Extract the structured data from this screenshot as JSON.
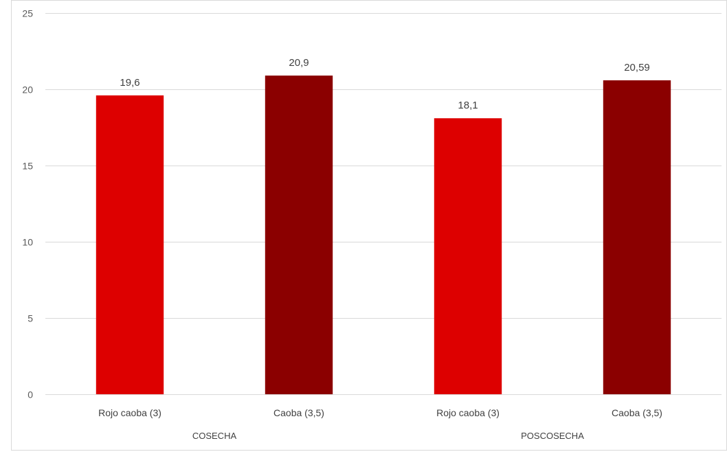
{
  "chart_data": {
    "type": "bar",
    "title": "",
    "xlabel": "",
    "ylabel": "",
    "ylim": [
      0,
      25
    ],
    "yticks": [
      "0",
      "5",
      "10",
      "15",
      "20",
      "25"
    ],
    "grid": true,
    "legend": "none",
    "groups": [
      {
        "label": "COSECHA",
        "bars": [
          {
            "category": "Rojo caoba (3)",
            "value": 19.6,
            "label": "19,6",
            "color": "#dd0000"
          },
          {
            "category": "Caoba (3,5)",
            "value": 20.9,
            "label": "20,9",
            "color": "#8b0000"
          }
        ]
      },
      {
        "label": "POSCOSECHA",
        "bars": [
          {
            "category": "Rojo caoba (3)",
            "value": 18.1,
            "label": "18,1",
            "color": "#dd0000"
          },
          {
            "category": "Caoba (3,5)",
            "value": 20.59,
            "label": "20,59",
            "color": "#8b0000"
          }
        ]
      }
    ]
  }
}
